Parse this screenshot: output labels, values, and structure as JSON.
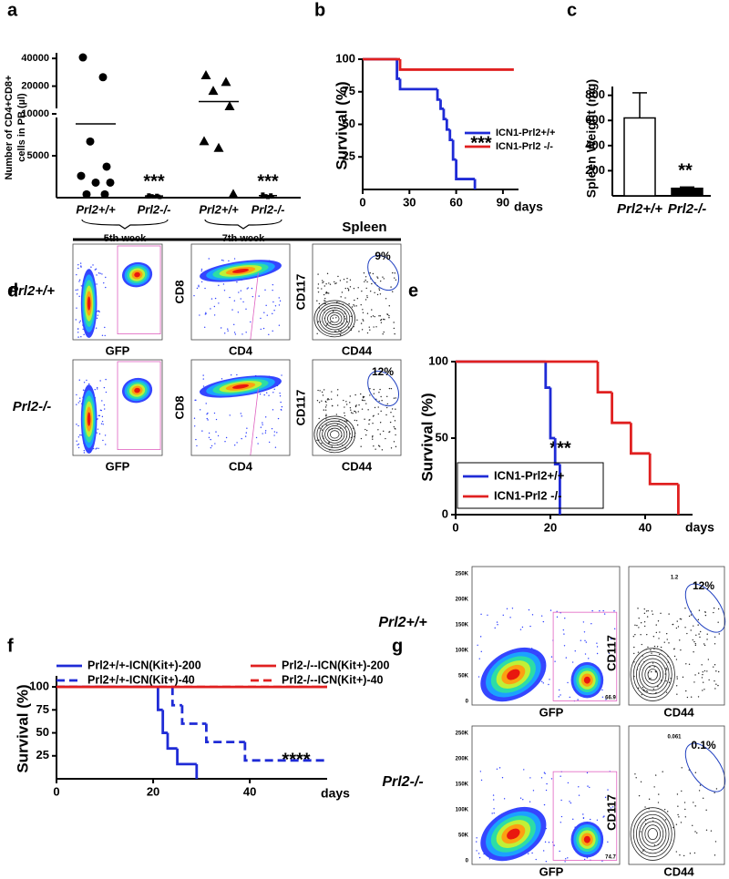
{
  "panel_labels": [
    "a",
    "b",
    "c",
    "d",
    "e",
    "f",
    "g"
  ],
  "chart_data": [
    {
      "type": "dot",
      "ylabel": [
        "Number of CD4+CD8+",
        "cells in PB (µl)"
      ],
      "categories": [
        "Prl2+/+",
        "Prl2-/-",
        "Prl2+/+",
        "Prl2-/-"
      ],
      "groups": [
        "5th week",
        "7th week"
      ],
      "points": [
        [
          41000,
          25000,
          6700,
          3700,
          2600,
          1800,
          1800,
          400,
          400
        ],
        [
          300,
          250,
          200,
          150,
          100,
          100,
          50
        ],
        [
          26000,
          22000,
          17600,
          12000,
          6700,
          5900,
          400
        ],
        [
          400,
          300,
          200,
          100,
          100,
          50
        ]
      ],
      "means": [
        8800,
        200,
        13600,
        250
      ],
      "markers": [
        "circle",
        "square",
        "triangle",
        "square"
      ],
      "color": "#000000",
      "ylim": [
        0,
        46000
      ],
      "ybreak": 10000,
      "yticks": [
        5000,
        10000,
        20000,
        40000
      ],
      "annotations": [
        "***",
        "***"
      ]
    },
    {
      "type": "step",
      "ylabel": "Survival (%)",
      "xlabel": "days",
      "xlim": [
        0,
        100
      ],
      "xticks": [
        0,
        30,
        60,
        90
      ],
      "ylim": [
        0,
        100
      ],
      "yticks": [
        25,
        50,
        75,
        100
      ],
      "series": [
        {
          "name": "ICN1-Prl2+/+",
          "color": "#1f2bd6",
          "x": [
            0,
            22,
            24,
            48,
            50,
            52,
            54,
            56,
            58,
            60,
            72
          ],
          "values": [
            100,
            85,
            77,
            69,
            62,
            54,
            46,
            38,
            23,
            8,
            0
          ]
        },
        {
          "name": "ICN1-Prl2 -/-",
          "color": "#e02020",
          "x": [
            0,
            24,
            97
          ],
          "values": [
            100,
            92,
            92
          ]
        }
      ],
      "annotations": [
        "***"
      ]
    },
    {
      "type": "bar",
      "ylabel": "Spleen Weight (mg)",
      "categories": [
        "Prl2+/+",
        "Prl2-/-"
      ],
      "values": [
        620,
        60
      ],
      "errors": [
        200,
        10
      ],
      "colors": [
        "#ffffff",
        "#000000"
      ],
      "ylim": [
        0,
        870
      ],
      "yticks": [
        200,
        400,
        600,
        800
      ],
      "annotations": [
        "**"
      ]
    },
    {
      "type": "step",
      "ylabel": "Survival (%)",
      "xlabel": "days",
      "xlim": [
        0,
        50
      ],
      "xticks": [
        0,
        20,
        40
      ],
      "ylim": [
        0,
        100
      ],
      "yticks": [
        0,
        50,
        100
      ],
      "series": [
        {
          "name": "ICN1-Prl2+/+",
          "color": "#1f2bd6",
          "x": [
            0,
            19,
            20,
            21,
            22
          ],
          "values": [
            100,
            83,
            50,
            33,
            0
          ]
        },
        {
          "name": "ICN1-Prl2 -/-",
          "color": "#e02020",
          "x": [
            0,
            30,
            33,
            37,
            41,
            47
          ],
          "values": [
            100,
            80,
            60,
            40,
            20,
            0
          ]
        }
      ],
      "annotations": [
        "***"
      ]
    },
    {
      "type": "step",
      "ylabel": "Survival (%)",
      "xlabel": "days",
      "xlim": [
        0,
        56
      ],
      "xticks": [
        0,
        20,
        40
      ],
      "ylim": [
        0,
        112
      ],
      "yticks": [
        25,
        50,
        75,
        100
      ],
      "series": [
        {
          "name": "Prl2+/+-ICN(Kit+)-200",
          "color": "#1f2bd6",
          "dash": false,
          "x": [
            0,
            21,
            22,
            23,
            25,
            29
          ],
          "values": [
            100,
            75,
            50,
            33,
            16,
            0
          ]
        },
        {
          "name": "Prl2+/+-ICN(Kit+)-40",
          "color": "#1f2bd6",
          "dash": true,
          "x": [
            0,
            24,
            26,
            31,
            39,
            56
          ],
          "values": [
            100,
            80,
            60,
            40,
            20,
            20
          ]
        },
        {
          "name": "Prl2-/--ICN(Kit+)-200",
          "color": "#e02020",
          "dash": false,
          "x": [
            0,
            56
          ],
          "values": [
            100,
            100
          ]
        },
        {
          "name": "Prl2-/--ICN(Kit+)-40",
          "color": "#e02020",
          "dash": true,
          "x": [
            0,
            56
          ],
          "values": [
            100,
            100
          ]
        }
      ],
      "annotations": [
        "****"
      ]
    }
  ],
  "flow": {
    "d": {
      "title": "Spleen",
      "rows": [
        "Prl2+/+",
        "Prl2-/-"
      ],
      "columns": [
        {
          "x": "GFP"
        },
        {
          "x": "CD4",
          "y": "CD8"
        },
        {
          "x": "CD44",
          "y": "CD117"
        }
      ],
      "percents": [
        "9%",
        "12%"
      ]
    },
    "g": {
      "rows": [
        "Prl2+/+",
        "Prl2-/-"
      ],
      "columns": [
        {
          "x": "GFP"
        },
        {
          "x": "CD44",
          "y": "CD117"
        }
      ],
      "percents": [
        "12%",
        "0.1%"
      ],
      "gates": [
        [
          "66.9",
          "1.2"
        ],
        [
          "74.7",
          "0.061"
        ]
      ],
      "yticks": [
        "0",
        "50K",
        "100K",
        "150K",
        "200K",
        "250K"
      ]
    }
  }
}
